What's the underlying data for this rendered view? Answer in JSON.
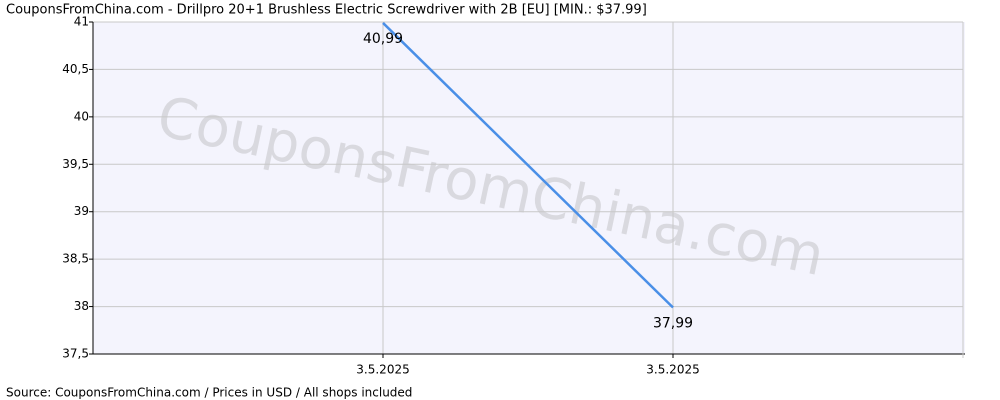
{
  "chart_data": {
    "type": "line",
    "title": "CouponsFromChina.com - Drillpro 20+1 Brushless Electric Screwdriver with 2B [EU] [MIN.: $37.99]",
    "watermark": "CouponsFromChina.com",
    "footer": "Source: CouponsFromChina.com / Prices in USD / All shops included",
    "categories": [
      "3.5.2025",
      "3.5.2025"
    ],
    "series": [
      {
        "name": "Price",
        "color": "#4a8fe7",
        "values": [
          40.99,
          37.99
        ],
        "value_labels": [
          "40,99",
          "37,99"
        ]
      }
    ],
    "ylim": [
      37.5,
      41
    ],
    "yticks": [
      {
        "value": 37.5,
        "label": "37,5"
      },
      38,
      {
        "value": 38.5,
        "label": "38,5"
      },
      39,
      {
        "value": 39.5,
        "label": "39,5"
      },
      40,
      {
        "value": 40.5,
        "label": "40,5"
      },
      41
    ],
    "grid": true
  }
}
